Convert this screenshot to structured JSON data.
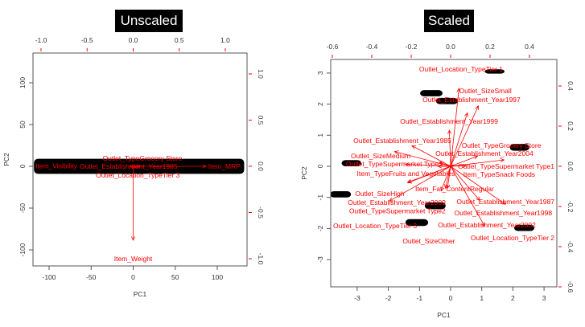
{
  "titles": {
    "unscaled": "Unscaled",
    "scaled": "Scaled"
  },
  "colors": {
    "points": "#000000",
    "arrows": "#ff0000",
    "axis": "#555555"
  },
  "chart_data": [
    {
      "type": "scatter",
      "subtype": "biplot",
      "title": "Unscaled",
      "xlabel": "PC1",
      "ylabel": "PC2",
      "xlim": [
        -120,
        135
      ],
      "ylim": [
        -120,
        135
      ],
      "xticks": [
        -100,
        -50,
        0,
        50,
        100
      ],
      "yticks": [
        -100,
        -50,
        0,
        50,
        100
      ],
      "loading_lim": [
        -1.1,
        1.25
      ],
      "top_ticks": [
        "-1.0",
        "-0.5",
        "0.0",
        "0.5",
        "1.0"
      ],
      "right_ticks": [
        "-1.0",
        "-0.5",
        "0.0",
        "0.5",
        "1.0"
      ],
      "point_clusters": [
        {
          "pc1": [
            -118,
            132
          ],
          "pc2": [
            -9,
            9
          ]
        }
      ],
      "loadings": [
        {
          "label": "Item_MRP",
          "x": 0.99,
          "y": 0.0
        },
        {
          "label": "Item_Weight",
          "x": 0.0,
          "y": -1.0
        },
        {
          "label": "Outlet_Establishment_Year1985",
          "x": -0.05,
          "y": 0.0
        },
        {
          "label": "Outlet_Location_TypeTier 3",
          "x": 0.05,
          "y": -0.01
        },
        {
          "label": "Outlet_TypeGrocery Store",
          "x": 0.1,
          "y": 0.0
        },
        {
          "label": "Item_Visibility",
          "x": 0.0,
          "y": 0.005
        }
      ]
    },
    {
      "type": "scatter",
      "subtype": "biplot",
      "title": "Scaled",
      "xlabel": "PC1",
      "ylabel": "PC2",
      "xlim": [
        -3.85,
        3.4
      ],
      "ylim": [
        -3.9,
        3.4
      ],
      "xticks": [
        -3,
        -2,
        -1,
        0,
        1,
        2,
        3
      ],
      "yticks": [
        -3,
        -2,
        -1,
        0,
        1,
        2,
        3
      ],
      "top_ticks": [
        "-0.6",
        "-0.4",
        "-0.2",
        "0.0",
        "0.2",
        "0.4"
      ],
      "right_ticks": [
        "-0.6",
        "-0.4",
        "-0.2",
        "0.0",
        "0.2",
        "0.4"
      ],
      "point_clusters": [
        {
          "pc1": [
            1.1,
            1.73
          ],
          "pc2": [
            2.98,
            3.12
          ]
        },
        {
          "pc1": [
            -0.98,
            -0.26
          ],
          "pc2": [
            2.25,
            2.45
          ]
        },
        {
          "pc1": [
            -0.47,
            0.23
          ],
          "pc2": [
            2.0,
            2.2
          ]
        },
        {
          "pc1": [
            1.9,
            2.53
          ],
          "pc2": [
            0.5,
            0.72
          ]
        },
        {
          "pc1": [
            -3.5,
            -2.87
          ],
          "pc2": [
            0.0,
            0.2
          ]
        },
        {
          "pc1": [
            -3.87,
            -3.2
          ],
          "pc2": [
            -1.0,
            -0.8
          ]
        },
        {
          "pc1": [
            -0.83,
            -0.16
          ],
          "pc2": [
            -1.38,
            -1.16
          ]
        },
        {
          "pc1": [
            -1.45,
            -0.72
          ],
          "pc2": [
            -1.92,
            -1.7
          ]
        },
        {
          "pc1": [
            2.04,
            2.69
          ],
          "pc2": [
            -2.08,
            -1.88
          ]
        }
      ],
      "loadings": [
        {
          "label": "Outlet_Location_TypeTier 1",
          "x": 0.053,
          "y": 0.484
        },
        {
          "label": "Outlet_SizeSmall",
          "x": 0.176,
          "y": 0.376
        },
        {
          "label": "Outlet_Establishment_Year1997",
          "x": 0.106,
          "y": 0.332
        },
        {
          "label": "Outlet_Establishment_Year1999",
          "x": -0.008,
          "y": 0.224
        },
        {
          "label": "Outlet_Establishment_Year1985",
          "x": -0.245,
          "y": 0.128
        },
        {
          "label": "Outlet_SizeMedium",
          "x": -0.355,
          "y": 0.092
        },
        {
          "label": "Outlet_Establishment_Year2004",
          "x": 0.171,
          "y": 0.064
        },
        {
          "label": "Outlet_TypeSupermarket Type1",
          "x": 0.339,
          "y": 0.04
        },
        {
          "label": "Outlet_TypeSupermarket Type3",
          "x": -0.286,
          "y": 0.012
        },
        {
          "label": "Outlet_TypeGrocery Store",
          "x": -0.069,
          "y": 0.024
        },
        {
          "label": "Item_TypeFruits and Vegetables",
          "x": 0.1,
          "y": 0.004
        },
        {
          "label": "Item_TypeSnack Foods",
          "x": -0.08,
          "y": 0.0
        },
        {
          "label": "Item_Fat_ContentRegular",
          "x": 0.02,
          "y": 0.008
        },
        {
          "label": "Outlet_Establishment_Year2009",
          "x": -0.273,
          "y": -0.1
        },
        {
          "label": "Outlet_TypeSupermarket Type2",
          "x": -0.27,
          "y": -0.102
        },
        {
          "label": "Outlet_SizeHigh",
          "x": -0.033,
          "y": -0.136
        },
        {
          "label": "Outlet_Establishment_Year1987",
          "x": -0.02,
          "y": -0.136
        },
        {
          "label": "Outlet_Establishment_Year1998",
          "x": -0.06,
          "y": -0.152
        },
        {
          "label": "Outlet_Location_TypeTier 3",
          "x": -0.388,
          "y": -0.216
        },
        {
          "label": "Outlet_Establishment_Year2002",
          "x": 0.184,
          "y": -0.212
        },
        {
          "label": "Outlet_Location_TypeTier 2",
          "x": 0.347,
          "y": -0.236
        },
        {
          "label": "Outlet_SizeOther",
          "x": 0.216,
          "y": -0.372
        }
      ]
    }
  ]
}
